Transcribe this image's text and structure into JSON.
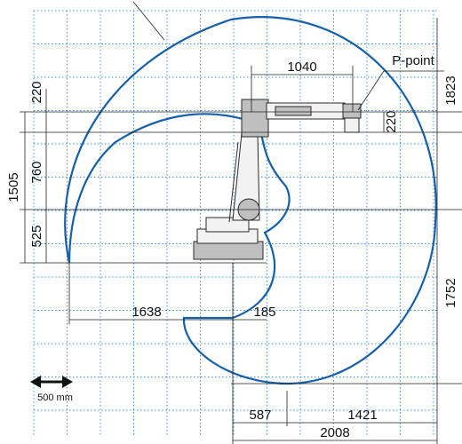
{
  "diagram": {
    "dimensions": {
      "top_reach": "1040",
      "p_point_label": "P-point",
      "right_upper": "1823",
      "right_small": "220",
      "right_lower": "1752",
      "left_top_small": "220",
      "left_overall": "1505",
      "left_mid": "760",
      "left_low": "525",
      "bottom_left": "1638",
      "bottom_mid": "185",
      "floor_left": "587",
      "floor_right": "1421",
      "floor_total": "2008"
    },
    "scale": {
      "label": "500 mm"
    },
    "colors": {
      "envelope": "#1560aa",
      "grid": "#4a8fd8",
      "robot": "#2a2a2a"
    }
  }
}
